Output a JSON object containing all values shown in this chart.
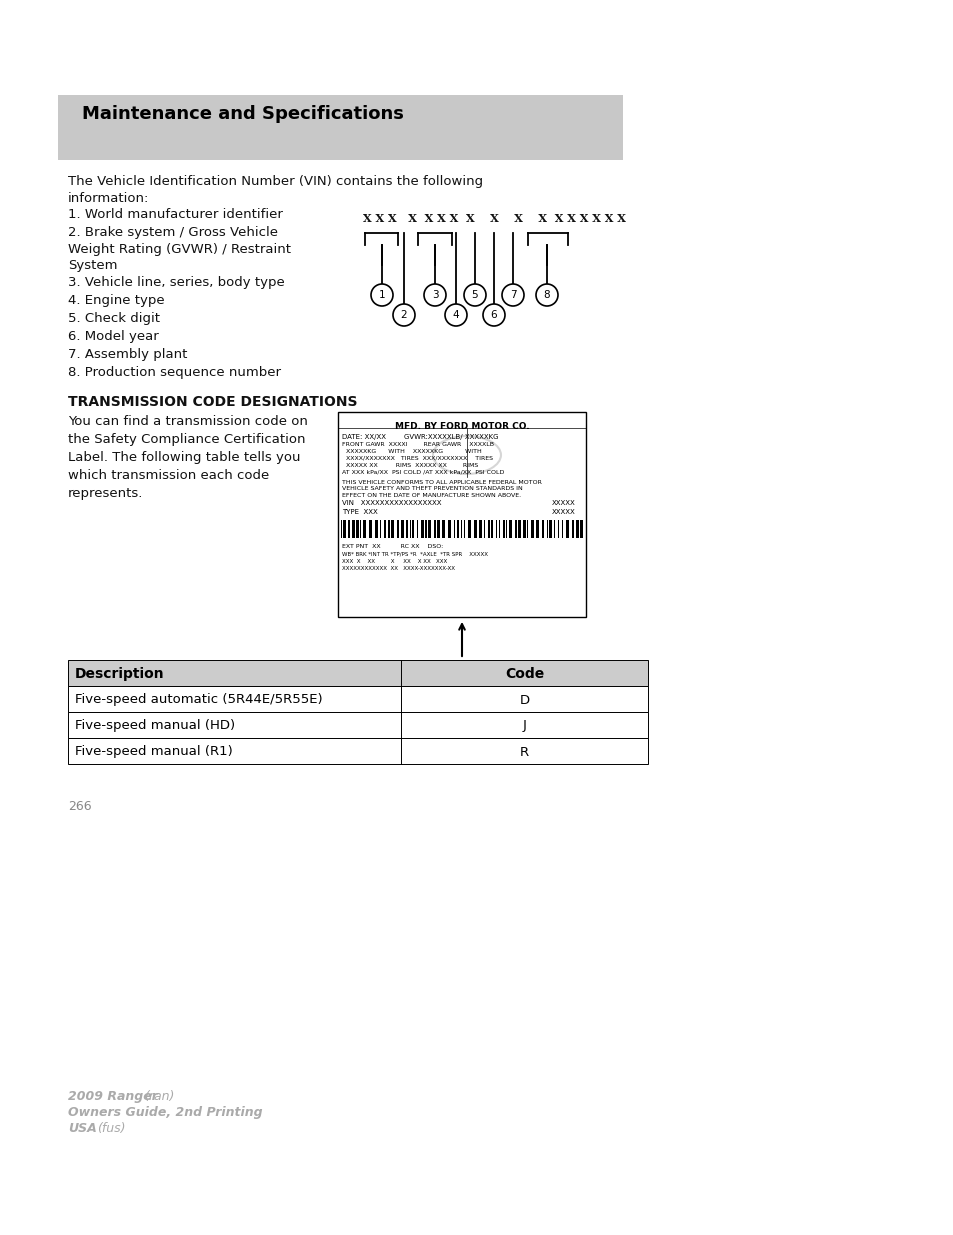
{
  "bg_color": "#ffffff",
  "header_bg": "#c8c8c8",
  "header_text": "Maintenance and Specifications",
  "header_text_color": "#000000",
  "header_font_size": 13,
  "body_font_size": 9.5,
  "section_title": "TRANSMISSION CODE DESIGNATIONS",
  "table_headers": [
    "Description",
    "Code"
  ],
  "table_rows": [
    [
      "Five-speed automatic (5R44E/5R55E)",
      "D"
    ],
    [
      "Five-speed manual (HD)",
      "J"
    ],
    [
      "Five-speed manual (R1)",
      "R"
    ]
  ],
  "table_header_bg": "#cccccc",
  "page_number": "266",
  "footer_color": "#aaaaaa"
}
